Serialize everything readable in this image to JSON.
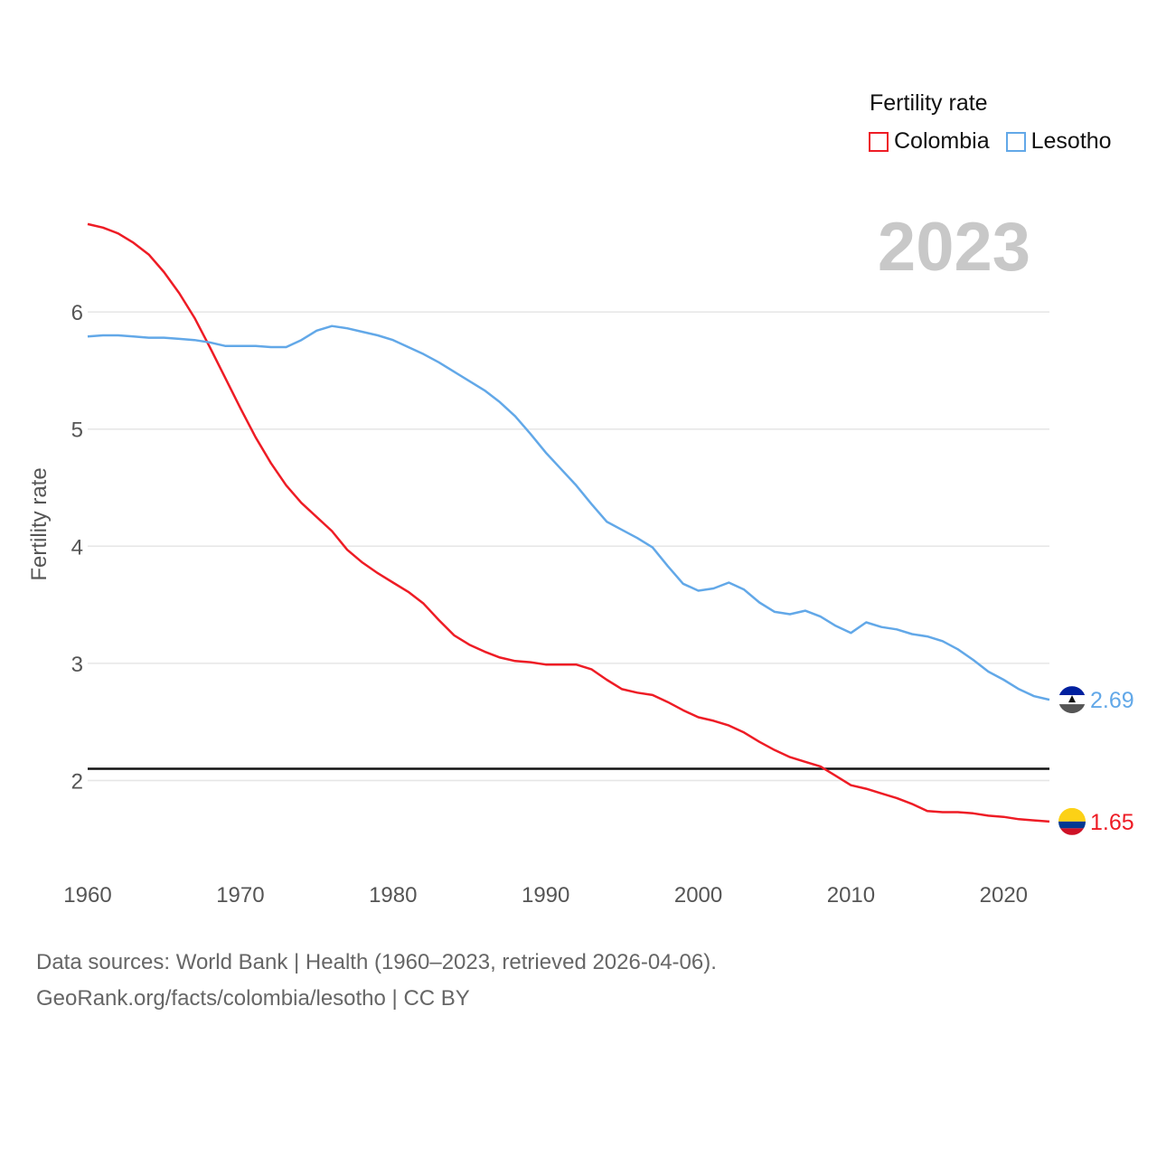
{
  "legend": {
    "title": "Fertility rate",
    "items": [
      {
        "label": "Colombia",
        "color": "#ee1c25"
      },
      {
        "label": "Lesotho",
        "color": "#62a8e8"
      }
    ]
  },
  "footer": {
    "line1": "Data sources: World Bank | Health (1960–2023, retrieved 2026-04-06).",
    "line2": "GeoRank.org/facts/colombia/lesotho | CC BY"
  },
  "chart_data": {
    "type": "line",
    "title": "Fertility rate",
    "year_watermark": "2023",
    "xlabel": "",
    "ylabel": "Fertility rate",
    "xlim": [
      1960,
      2023
    ],
    "ylim": [
      1.5,
      6.8
    ],
    "x_ticks": [
      1960,
      1970,
      1980,
      1990,
      2000,
      2010,
      2020
    ],
    "y_ticks": [
      2,
      3,
      4,
      5,
      6
    ],
    "reference_line": 2.1,
    "x": [
      1960,
      1961,
      1962,
      1963,
      1964,
      1965,
      1966,
      1967,
      1968,
      1969,
      1970,
      1971,
      1972,
      1973,
      1974,
      1975,
      1976,
      1977,
      1978,
      1979,
      1980,
      1981,
      1982,
      1983,
      1984,
      1985,
      1986,
      1987,
      1988,
      1989,
      1990,
      1991,
      1992,
      1993,
      1994,
      1995,
      1996,
      1997,
      1998,
      1999,
      2000,
      2001,
      2002,
      2003,
      2004,
      2005,
      2006,
      2007,
      2008,
      2009,
      2010,
      2011,
      2012,
      2013,
      2014,
      2015,
      2016,
      2017,
      2018,
      2019,
      2020,
      2021,
      2022,
      2023
    ],
    "series": [
      {
        "name": "Colombia",
        "color": "#ee1c25",
        "end_label": "1.65",
        "values": [
          6.75,
          6.72,
          6.67,
          6.59,
          6.49,
          6.34,
          6.16,
          5.95,
          5.7,
          5.44,
          5.18,
          4.93,
          4.71,
          4.52,
          4.37,
          4.25,
          4.13,
          3.97,
          3.86,
          3.77,
          3.69,
          3.61,
          3.51,
          3.37,
          3.24,
          3.16,
          3.1,
          3.05,
          3.02,
          3.01,
          2.99,
          2.99,
          2.99,
          2.95,
          2.86,
          2.78,
          2.75,
          2.73,
          2.67,
          2.6,
          2.54,
          2.51,
          2.47,
          2.41,
          2.33,
          2.26,
          2.2,
          2.16,
          2.12,
          2.04,
          1.96,
          1.93,
          1.89,
          1.85,
          1.8,
          1.74,
          1.73,
          1.73,
          1.72,
          1.7,
          1.69,
          1.67,
          1.66,
          1.65
        ]
      },
      {
        "name": "Lesotho",
        "color": "#62a8e8",
        "end_label": "2.69",
        "values": [
          5.79,
          5.8,
          5.8,
          5.79,
          5.78,
          5.78,
          5.77,
          5.76,
          5.74,
          5.71,
          5.71,
          5.71,
          5.7,
          5.7,
          5.76,
          5.84,
          5.88,
          5.86,
          5.83,
          5.8,
          5.76,
          5.7,
          5.64,
          5.57,
          5.49,
          5.41,
          5.33,
          5.23,
          5.11,
          4.96,
          4.8,
          4.66,
          4.52,
          4.36,
          4.21,
          4.14,
          4.07,
          3.99,
          3.83,
          3.68,
          3.62,
          3.64,
          3.69,
          3.63,
          3.52,
          3.44,
          3.42,
          3.45,
          3.4,
          3.32,
          3.26,
          3.35,
          3.31,
          3.29,
          3.25,
          3.23,
          3.19,
          3.12,
          3.03,
          2.93,
          2.86,
          2.78,
          2.72,
          2.69
        ]
      }
    ]
  }
}
